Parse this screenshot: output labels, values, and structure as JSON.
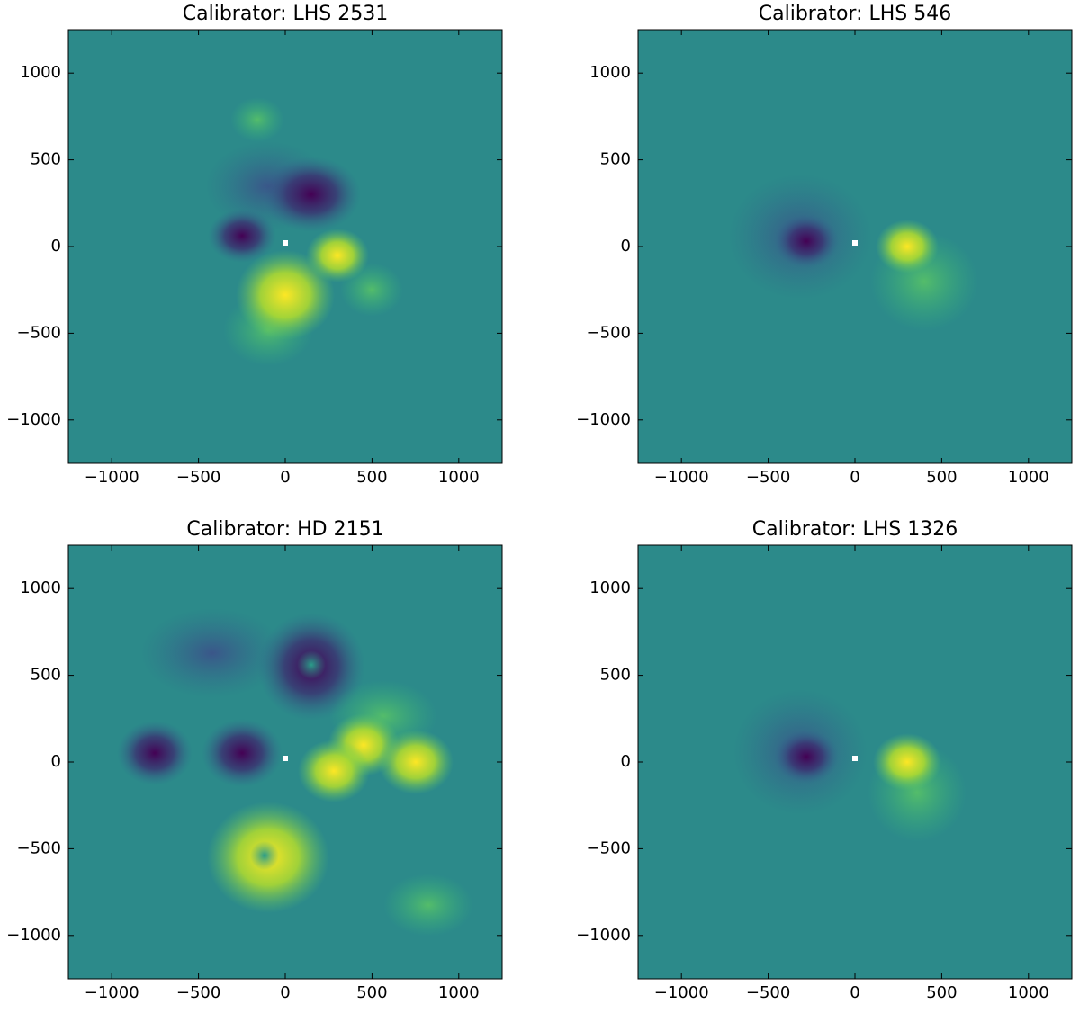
{
  "chart_data": [
    {
      "type": "image",
      "title": "Calibrator: LHS 2531",
      "xlim": [
        -1250,
        1250
      ],
      "ylim": [
        -1250,
        1250
      ],
      "xticks": [
        {
          "value": -1000,
          "label": "−1000"
        },
        {
          "value": -500,
          "label": "−500"
        },
        0,
        500,
        1000
      ],
      "yticks": [
        {
          "value": -1000,
          "label": "−1000"
        },
        {
          "value": -500,
          "label": "−500"
        },
        0,
        500,
        1000
      ]
    },
    {
      "type": "image",
      "title": "Calibrator: LHS 546",
      "xlim": [
        -1250,
        1250
      ],
      "ylim": [
        -1250,
        1250
      ],
      "xticks": [
        {
          "value": -1000,
          "label": "−1000"
        },
        {
          "value": -500,
          "label": "−500"
        },
        0,
        500,
        1000
      ],
      "yticks": [
        {
          "value": -1000,
          "label": "−1000"
        },
        {
          "value": -500,
          "label": "−500"
        },
        0,
        500,
        1000
      ]
    },
    {
      "type": "image",
      "title": "Calibrator: HD 2151",
      "xlim": [
        -1250,
        1250
      ],
      "ylim": [
        -1250,
        1250
      ],
      "xticks": [
        {
          "value": -1000,
          "label": "−1000"
        },
        {
          "value": -500,
          "label": "−500"
        },
        0,
        500,
        1000
      ],
      "yticks": [
        {
          "value": -1000,
          "label": "−1000"
        },
        {
          "value": -500,
          "label": "−500"
        },
        0,
        500,
        1000
      ]
    },
    {
      "type": "image",
      "title": "Calibrator: LHS 1326",
      "xlim": [
        -1250,
        1250
      ],
      "ylim": [
        -1250,
        1250
      ],
      "xticks": [
        {
          "value": -1000,
          "label": "−1000"
        },
        {
          "value": -500,
          "label": "−500"
        },
        0,
        500,
        1000
      ],
      "yticks": [
        {
          "value": -1000,
          "label": "−1000"
        },
        {
          "value": -500,
          "label": "−500"
        },
        0,
        500,
        1000
      ]
    }
  ]
}
